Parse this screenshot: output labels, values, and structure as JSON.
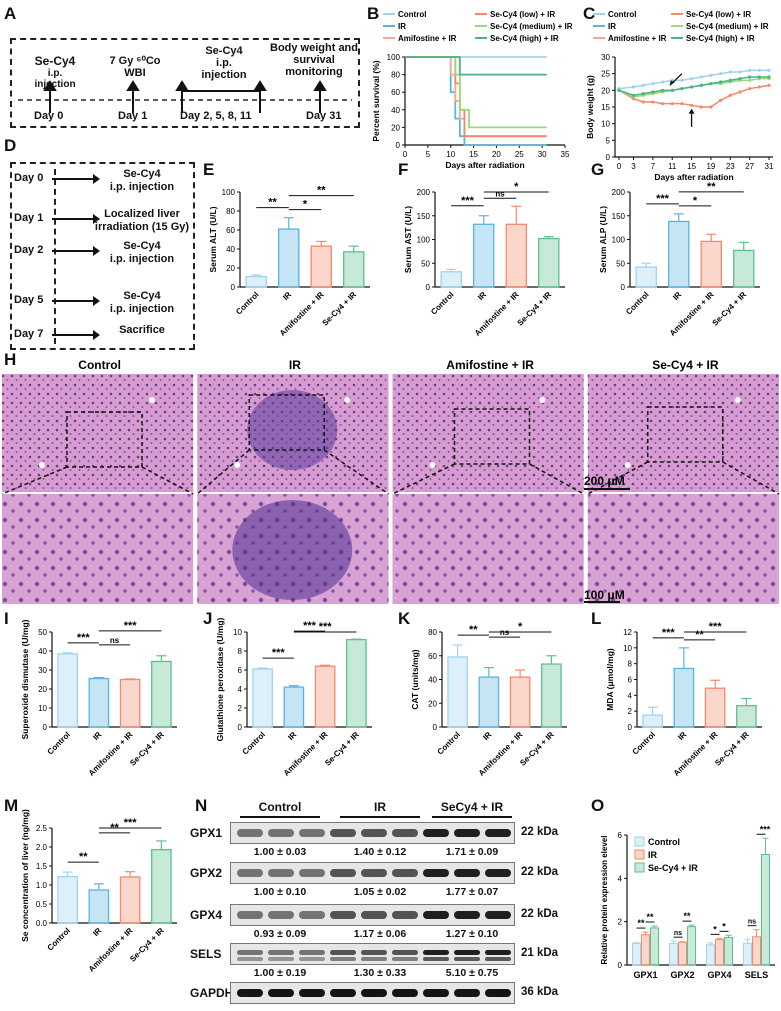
{
  "panels": {
    "A": "A",
    "B": "B",
    "C": "C",
    "D": "D",
    "E": "E",
    "F": "F",
    "G": "G",
    "H": "H",
    "I": "I",
    "J": "J",
    "K": "K",
    "L": "L",
    "M": "M",
    "N": "N",
    "O": "O"
  },
  "colors": {
    "control": "#9fd3f0",
    "ir": "#5ab4e0",
    "amifostine": "#f4896b",
    "secy4": "#5fbf8f",
    "secy4_low": "#f4896b",
    "secy4_med": "#9ad97c",
    "secy4_high": "#49b287",
    "he": "#c98bbf"
  },
  "timeline": {
    "step1": "Se-Cy4",
    "step1b": "i.p. injection",
    "step2": "7 Gy ⁶⁰Co",
    "step2b": "WBI",
    "step3": "Se-Cy4",
    "step3b": "i.p. injection",
    "step4": "Body weight and",
    "step4b": "survival",
    "step4c": "monitoring",
    "day0": "Day 0",
    "day1": "Day 1",
    "day2": "Day 2, 5, 8, 11",
    "day31": "Day 31"
  },
  "protocol": {
    "rows": [
      {
        "day": "Day 0",
        "text1": "Se-Cy4",
        "text2": "i.p. injection"
      },
      {
        "day": "Day 1",
        "text1": "Localized liver",
        "text2": "irradiation (15 Gy)"
      },
      {
        "day": "Day 2",
        "text1": "Se-Cy4",
        "text2": "i.p. injection"
      },
      {
        "day": "Day 5",
        "text1": "Se-Cy4",
        "text2": "i.p. injection"
      },
      {
        "day": "Day 7",
        "text1": "Sacrifice",
        "text2": ""
      }
    ]
  },
  "groups4": [
    "Control",
    "IR",
    "Amifostine + IR",
    "Se-Cy4 + IR"
  ],
  "chart_data": [
    {
      "id": "B",
      "type": "line",
      "ylabel": "Percent survival (%)",
      "xlabel": "Days after radiation",
      "xlim": [
        0,
        35
      ],
      "ylim": [
        0,
        100
      ],
      "xticks": [
        0,
        5,
        10,
        15,
        20,
        25,
        30,
        35
      ],
      "yticks": [
        0,
        20,
        40,
        60,
        80,
        100
      ],
      "legend": [
        "Control",
        "IR",
        "Amifostine + IR",
        "Se-Cy4 (low) + IR",
        "Se-Cy4 (medium) + IR",
        "Se-Cy4 (high) + IR"
      ],
      "series": [
        {
          "name": "Control",
          "x": [
            0,
            31
          ],
          "y": [
            100,
            100
          ]
        },
        {
          "name": "IR",
          "x": [
            0,
            9,
            10,
            11,
            12,
            13,
            31
          ],
          "y": [
            100,
            100,
            60,
            30,
            10,
            0,
            0
          ]
        },
        {
          "name": "Amifostine + IR",
          "x": [
            0,
            9,
            10,
            11,
            12,
            13,
            31
          ],
          "y": [
            100,
            100,
            80,
            50,
            30,
            10,
            10
          ]
        },
        {
          "name": "Se-Cy4 (low) + IR",
          "x": [
            0,
            10,
            11,
            12,
            13,
            31
          ],
          "y": [
            100,
            100,
            70,
            40,
            10,
            10
          ]
        },
        {
          "name": "Se-Cy4 (medium) + IR",
          "x": [
            0,
            10,
            11,
            12,
            14,
            31
          ],
          "y": [
            100,
            100,
            80,
            40,
            20,
            20
          ]
        },
        {
          "name": "Se-Cy4 (high) + IR",
          "x": [
            0,
            11,
            12,
            31
          ],
          "y": [
            100,
            100,
            80,
            80
          ]
        }
      ]
    },
    {
      "id": "C",
      "type": "line",
      "ylabel": "Body weight (g)",
      "xlabel": "Days after radiation",
      "ylim": [
        0,
        30
      ],
      "xticks": [
        0,
        3,
        7,
        11,
        15,
        19,
        23,
        27,
        31
      ],
      "yticks": [
        0,
        5,
        10,
        15,
        20,
        25,
        30
      ],
      "legend": [
        "Control",
        "IR",
        "Amifostine + IR",
        "Se-Cy4 (low) + IR",
        "Se-Cy4 (medium) + IR",
        "Se-Cy4 (high) + IR"
      ],
      "series": [
        {
          "name": "Control",
          "x": [
            0,
            3,
            5,
            7,
            9,
            11,
            13,
            15,
            17,
            19,
            21,
            23,
            25,
            27,
            29,
            31
          ],
          "y": [
            20.5,
            21,
            21.5,
            22,
            22.5,
            23,
            23,
            23.5,
            24,
            24.5,
            25,
            25.5,
            25.5,
            26,
            26,
            26
          ]
        },
        {
          "name": "Se-Cy4 (low) + IR",
          "x": [
            0,
            3,
            5,
            7,
            9,
            11,
            13,
            15,
            17,
            19,
            21,
            23,
            25,
            27,
            29,
            31
          ],
          "y": [
            20,
            17.5,
            16.5,
            16.5,
            16,
            16,
            16,
            15.5,
            15,
            15,
            17,
            18.5,
            19.5,
            20.5,
            21,
            21.5
          ]
        },
        {
          "name": "Se-Cy4 (medium) + IR",
          "x": [
            0,
            3,
            5,
            7,
            9,
            11,
            13,
            15,
            17,
            19,
            21,
            23,
            25,
            27,
            29,
            31
          ],
          "y": [
            20,
            18,
            18.5,
            19,
            19.5,
            20,
            20.5,
            21,
            21.5,
            22,
            22,
            22.5,
            23,
            23,
            23.5,
            23.5
          ]
        },
        {
          "name": "Se-Cy4 (high) + IR",
          "x": [
            0,
            3,
            5,
            7,
            9,
            11,
            13,
            15,
            17,
            19,
            21,
            23,
            25,
            27,
            29,
            31
          ],
          "y": [
            20,
            18.5,
            19,
            19.5,
            20,
            20,
            20.5,
            21,
            21.5,
            22,
            22.5,
            23,
            23.5,
            24,
            24,
            24
          ]
        }
      ]
    },
    {
      "id": "E",
      "type": "bar",
      "ylabel": "Serum ALT (U/L)",
      "ylim": [
        0,
        100
      ],
      "yticks": [
        0,
        20,
        40,
        60,
        80,
        100
      ],
      "values": [
        11,
        61,
        43,
        37
      ],
      "errors": [
        1.5,
        12,
        5,
        6
      ],
      "sig": [
        "**",
        "*",
        "**"
      ]
    },
    {
      "id": "F",
      "type": "bar",
      "ylabel": "Serum AST (U/L)",
      "ylim": [
        0,
        200
      ],
      "yticks": [
        0,
        50,
        100,
        150,
        200
      ],
      "values": [
        32,
        132,
        132,
        102
      ],
      "errors": [
        5,
        18,
        38,
        4
      ],
      "sig": [
        "***",
        "ns",
        "*"
      ]
    },
    {
      "id": "G",
      "type": "bar",
      "ylabel": "Serum ALP (U/L)",
      "ylim": [
        0,
        200
      ],
      "yticks": [
        0,
        50,
        100,
        150,
        200
      ],
      "values": [
        42,
        138,
        96,
        77
      ],
      "errors": [
        8,
        16,
        15,
        17
      ],
      "sig": [
        "***",
        "*",
        "**"
      ]
    },
    {
      "id": "I",
      "type": "bar",
      "ylabel": "Superoxide dismutase (U/mg)",
      "ylim": [
        0,
        50
      ],
      "yticks": [
        0,
        10,
        20,
        30,
        40,
        50
      ],
      "values": [
        38.5,
        25.5,
        25,
        34.5
      ],
      "errors": [
        0.5,
        0.5,
        0.3,
        3
      ],
      "sig": [
        "***",
        "ns",
        "***"
      ]
    },
    {
      "id": "J",
      "type": "bar",
      "ylabel": "Glutathione peroxidase (U/mg)",
      "ylim": [
        0,
        10
      ],
      "yticks": [
        0,
        2,
        4,
        6,
        8,
        10
      ],
      "values": [
        6.1,
        4.2,
        6.4,
        9.2
      ],
      "errors": [
        0.1,
        0.15,
        0.1,
        0.05
      ],
      "sig": [
        "***",
        "***",
        "***"
      ]
    },
    {
      "id": "K",
      "type": "bar",
      "ylabel": "CAT (units/mg)",
      "ylim": [
        0,
        80
      ],
      "yticks": [
        0,
        20,
        40,
        60,
        80
      ],
      "values": [
        59,
        42,
        42,
        53
      ],
      "errors": [
        10,
        8,
        6,
        7
      ],
      "sig": [
        "**",
        "ns",
        "*"
      ]
    },
    {
      "id": "L",
      "type": "bar",
      "ylabel": "MDA (μmol/mg)",
      "ylim": [
        0,
        12
      ],
      "yticks": [
        0,
        2,
        4,
        6,
        8,
        10,
        12
      ],
      "values": [
        1.5,
        7.4,
        4.9,
        2.7
      ],
      "errors": [
        1,
        2.6,
        1,
        0.9
      ],
      "sig": [
        "***",
        "**",
        "***"
      ]
    },
    {
      "id": "M",
      "type": "bar",
      "ylabel": "Se concentration of liver (ng/mg)",
      "ylim": [
        0,
        2.5
      ],
      "yticks": [
        "0.0",
        "0.5",
        "1.0",
        "1.5",
        "2.0",
        "2.5"
      ],
      "values": [
        1.22,
        0.87,
        1.21,
        1.93
      ],
      "errors": [
        0.12,
        0.16,
        0.14,
        0.23
      ],
      "sig": [
        "**",
        "**",
        "***"
      ]
    },
    {
      "id": "O",
      "type": "bar",
      "ylabel": "Relative protein expression elevel",
      "ylim": [
        0,
        6
      ],
      "yticks": [
        0,
        2,
        4,
        6
      ],
      "categories": [
        "GPX1",
        "GPX2",
        "GPX4",
        "SELS"
      ],
      "legend": [
        "Control",
        "IR",
        "Se-Cy4 + IR"
      ],
      "series": [
        {
          "name": "Control",
          "values": [
            1.0,
            1.0,
            0.93,
            1.0
          ],
          "errors": [
            0.03,
            0.1,
            0.09,
            0.19
          ]
        },
        {
          "name": "IR",
          "values": [
            1.4,
            1.05,
            1.17,
            1.3
          ],
          "errors": [
            0.12,
            0.02,
            0.06,
            0.33
          ]
        },
        {
          "name": "Se-Cy4 + IR",
          "values": [
            1.71,
            1.77,
            1.27,
            5.1
          ],
          "errors": [
            0.09,
            0.07,
            0.1,
            0.75
          ]
        }
      ],
      "sig": [
        [
          "**",
          "**"
        ],
        [
          "ns",
          "**"
        ],
        [
          "*",
          "*"
        ],
        [
          "ns",
          "***"
        ]
      ]
    }
  ],
  "histology": {
    "titles": [
      "Control",
      "IR",
      "Amifostine + IR",
      "Se-Cy4 + IR"
    ],
    "scale1": "200 μM",
    "scale2": "100 μM"
  },
  "blot": {
    "groups": [
      "Control",
      "IR",
      "SeCy4 + IR"
    ],
    "rows": [
      {
        "label": "GPX1",
        "kda": "22 kDa",
        "quant": [
          "1.00 ± 0.03",
          "1.40 ± 0.12",
          "1.71 ± 0.09"
        ]
      },
      {
        "label": "GPX2",
        "kda": "22 kDa",
        "quant": [
          "1.00 ± 0.10",
          "1.05 ± 0.02",
          "1.77 ± 0.07"
        ]
      },
      {
        "label": "GPX4",
        "kda": "22 kDa",
        "quant": [
          "0.93 ± 0.09",
          "1.17 ± 0.06",
          "1.27 ± 0.10"
        ]
      },
      {
        "label": "SELS",
        "kda": "21 kDa",
        "quant": [
          "1.00 ± 0.19",
          "1.30 ± 0.33",
          "5.10 ± 0.75"
        ]
      },
      {
        "label": "GAPDH",
        "kda": "36 kDa",
        "quant": [
          "",
          "",
          ""
        ]
      }
    ]
  }
}
